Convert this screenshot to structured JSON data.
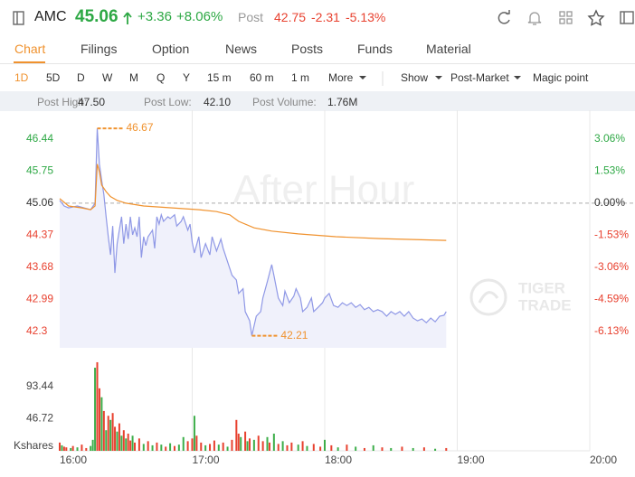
{
  "header": {
    "ticker": "AMC",
    "price": "45.06",
    "change": "+3.36",
    "change_pct": "+8.06%",
    "post_label": "Post",
    "post_price": "42.75",
    "post_change": "-2.31",
    "post_change_pct": "-5.13%"
  },
  "tabs": [
    "Chart",
    "Filings",
    "Option",
    "News",
    "Posts",
    "Funds",
    "Material"
  ],
  "toolbar": [
    "1D",
    "5D",
    "D",
    "W",
    "M",
    "Q",
    "Y",
    "15 m",
    "60 m",
    "1 m",
    "More",
    "Show",
    "Post-Market",
    "Magic point"
  ],
  "stats": [
    {
      "label": "Post High:",
      "value": "47.50"
    },
    {
      "label": "Post Low:",
      "value": "42.10"
    },
    {
      "label": "Post Volume:",
      "value": "1.76M"
    }
  ],
  "chart_data": {
    "type": "line",
    "watermark": "After Hour",
    "brand": [
      "TIGER",
      "TRADE"
    ],
    "xlim": [
      960,
      1200
    ],
    "xticks": [
      {
        "value": 960,
        "label": "16:00"
      },
      {
        "value": 1020,
        "label": "17:00"
      },
      {
        "value": 1080,
        "label": "18:00"
      },
      {
        "value": 1140,
        "label": "19:00"
      },
      {
        "value": 1200,
        "label": "20:00"
      }
    ],
    "ylim": [
      41.95,
      47.06
    ],
    "yticks": [
      46.44,
      45.75,
      45.06,
      44.37,
      43.68,
      42.99,
      42.3
    ],
    "y2lim": [
      -6.91,
      4.44
    ],
    "y2ticks": [
      {
        "value": 3.06,
        "label": "3.06%"
      },
      {
        "value": 1.53,
        "label": "1.53%"
      },
      {
        "value": 0,
        "label": "0.00%"
      },
      {
        "value": -1.53,
        "label": "-1.53%"
      },
      {
        "value": -3.06,
        "label": "-3.06%"
      },
      {
        "value": -4.59,
        "label": "-4.59%"
      },
      {
        "value": -6.13,
        "label": "-6.13%"
      }
    ],
    "series": [
      {
        "color": "#8f98e6",
        "fill": "#f0f1fb",
        "x": [
          960,
          962,
          964,
          966,
          968,
          971,
          974,
          976,
          977,
          978,
          979,
          980,
          981,
          982,
          983,
          984,
          985,
          986,
          987,
          988,
          989,
          990,
          991,
          992,
          993,
          994,
          995,
          996,
          997,
          998,
          999,
          1000,
          1002,
          1003,
          1004,
          1005,
          1006,
          1007,
          1009,
          1010,
          1012,
          1013,
          1015,
          1016,
          1018,
          1019,
          1020,
          1021,
          1023,
          1024,
          1026,
          1028,
          1029,
          1031,
          1033,
          1034,
          1036,
          1038,
          1040,
          1041,
          1043,
          1044,
          1046,
          1047,
          1049,
          1051,
          1052,
          1054,
          1056,
          1057,
          1059,
          1061,
          1062,
          1064,
          1066,
          1067,
          1069,
          1070,
          1072,
          1074,
          1075,
          1077,
          1079,
          1080,
          1082,
          1084,
          1086,
          1088,
          1090,
          1092,
          1094,
          1096,
          1098,
          1100,
          1102,
          1104,
          1106,
          1108,
          1110,
          1112,
          1114,
          1116,
          1118,
          1120,
          1122,
          1124,
          1126,
          1128,
          1130,
          1132,
          1134,
          1135
        ],
        "values": [
          45.12,
          45.0,
          44.96,
          44.98,
          45.0,
          44.96,
          44.92,
          45.06,
          46.67,
          45.9,
          45.55,
          45.25,
          44.77,
          44.34,
          43.95,
          44.57,
          43.56,
          44.19,
          44.48,
          44.77,
          44.19,
          44.61,
          44.29,
          44.77,
          44.38,
          44.53,
          44.34,
          44.77,
          43.89,
          44.34,
          44.15,
          44.34,
          44.48,
          44.09,
          44.77,
          44.61,
          44.81,
          44.67,
          44.77,
          44.73,
          44.81,
          44.57,
          44.67,
          44.77,
          44.48,
          44.61,
          44.22,
          43.99,
          44.34,
          43.89,
          44.19,
          43.95,
          44.34,
          44.03,
          44.29,
          44.09,
          43.8,
          43.51,
          43.41,
          43.12,
          43.22,
          42.73,
          42.53,
          42.21,
          42.63,
          42.73,
          43.02,
          43.37,
          43.74,
          43.51,
          43.02,
          42.86,
          43.17,
          42.92,
          43.06,
          43.22,
          43.02,
          42.73,
          42.82,
          43.02,
          42.73,
          42.82,
          42.92,
          43.02,
          43.12,
          42.86,
          42.82,
          42.92,
          42.86,
          42.92,
          42.82,
          42.88,
          42.77,
          42.82,
          42.73,
          42.77,
          42.73,
          42.63,
          42.73,
          42.67,
          42.73,
          42.63,
          42.73,
          42.59,
          42.53,
          42.57,
          42.49,
          42.59,
          42.51,
          42.63,
          42.65,
          42.73
        ]
      },
      {
        "color": "#f0922e",
        "x": [
          960,
          964,
          970,
          974,
          976,
          977,
          978,
          979,
          981,
          983,
          986,
          990,
          998,
          1011,
          1023,
          1031,
          1037,
          1041,
          1048,
          1056,
          1068,
          1085,
          1105,
          1135
        ],
        "values": [
          45.16,
          45.0,
          44.96,
          44.92,
          45.0,
          45.9,
          45.74,
          45.45,
          45.31,
          45.2,
          45.12,
          45.06,
          45.0,
          44.96,
          44.92,
          44.88,
          44.81,
          44.67,
          44.53,
          44.46,
          44.4,
          44.34,
          44.3,
          44.26
        ]
      }
    ],
    "annotations": [
      {
        "x": 977,
        "value": 46.67
      },
      {
        "x": 1047,
        "value": 42.21
      }
    ],
    "annotation_color": "#f0922e",
    "volume": {
      "unit_label": "Kshares",
      "ylim": [
        0,
        140.8
      ],
      "yticks": [
        93.44,
        46.72
      ],
      "x": [
        960,
        961,
        962,
        963,
        965,
        966,
        968,
        970,
        972,
        974,
        975,
        976,
        977,
        978,
        979,
        980,
        981,
        982,
        983,
        984,
        985,
        986,
        987,
        988,
        989,
        990,
        991,
        992,
        993,
        994,
        996,
        998,
        1000,
        1002,
        1004,
        1006,
        1008,
        1010,
        1012,
        1014,
        1016,
        1018,
        1020,
        1021,
        1022,
        1024,
        1026,
        1028,
        1030,
        1032,
        1034,
        1036,
        1038,
        1040,
        1041,
        1042,
        1044,
        1045,
        1046,
        1048,
        1050,
        1052,
        1054,
        1055,
        1057,
        1059,
        1061,
        1063,
        1065,
        1068,
        1070,
        1072,
        1075,
        1078,
        1080,
        1083,
        1086,
        1090,
        1094,
        1098,
        1102,
        1106,
        1110,
        1115,
        1120,
        1125,
        1130,
        1135
      ],
      "values": [
        12,
        8,
        6,
        5,
        4,
        7,
        5,
        9,
        4,
        7,
        16,
        121,
        129,
        91,
        78,
        58,
        30,
        51,
        45,
        55,
        35,
        28,
        40,
        22,
        30,
        18,
        25,
        15,
        22,
        12,
        18,
        10,
        14,
        8,
        12,
        9,
        6,
        11,
        7,
        9,
        20,
        14,
        18,
        51,
        22,
        12,
        8,
        10,
        15,
        9,
        12,
        6,
        16,
        45,
        25,
        20,
        28,
        14,
        18,
        16,
        22,
        14,
        20,
        12,
        25,
        10,
        14,
        8,
        12,
        9,
        14,
        7,
        10,
        6,
        16,
        8,
        5,
        9,
        6,
        4,
        8,
        5,
        4,
        6,
        4,
        5,
        3,
        4
      ],
      "colors": [
        "#e8412f",
        "#3dae4a",
        "#e8412f",
        "#e8412f",
        "#3dae4a",
        "#e8412f",
        "#3dae4a",
        "#e8412f",
        "#e8412f",
        "#3dae4a",
        "#3dae4a",
        "#3dae4a",
        "#e8412f",
        "#e8412f",
        "#3dae4a",
        "#e8412f",
        "#3dae4a",
        "#e8412f",
        "#3dae4a",
        "#e8412f",
        "#e8412f",
        "#3dae4a",
        "#e8412f",
        "#3dae4a",
        "#e8412f",
        "#3dae4a",
        "#e8412f",
        "#e8412f",
        "#3dae4a",
        "#e8412f",
        "#e8412f",
        "#3dae4a",
        "#e8412f",
        "#3dae4a",
        "#e8412f",
        "#3dae4a",
        "#e8412f",
        "#3dae4a",
        "#e8412f",
        "#3dae4a",
        "#3dae4a",
        "#e8412f",
        "#e8412f",
        "#3dae4a",
        "#e8412f",
        "#e8412f",
        "#3dae4a",
        "#e8412f",
        "#e8412f",
        "#3dae4a",
        "#e8412f",
        "#3dae4a",
        "#e8412f",
        "#e8412f",
        "#e8412f",
        "#3dae4a",
        "#e8412f",
        "#3dae4a",
        "#e8412f",
        "#3dae4a",
        "#e8412f",
        "#e8412f",
        "#3dae4a",
        "#e8412f",
        "#3dae4a",
        "#e8412f",
        "#3dae4a",
        "#e8412f",
        "#e8412f",
        "#3dae4a",
        "#e8412f",
        "#3dae4a",
        "#e8412f",
        "#e8412f",
        "#3dae4a",
        "#e8412f",
        "#3dae4a",
        "#e8412f",
        "#3dae4a",
        "#e8412f",
        "#3dae4a",
        "#e8412f",
        "#3dae4a",
        "#e8412f",
        "#3dae4a",
        "#e8412f",
        "#3dae4a",
        "#e8412f"
      ]
    }
  }
}
